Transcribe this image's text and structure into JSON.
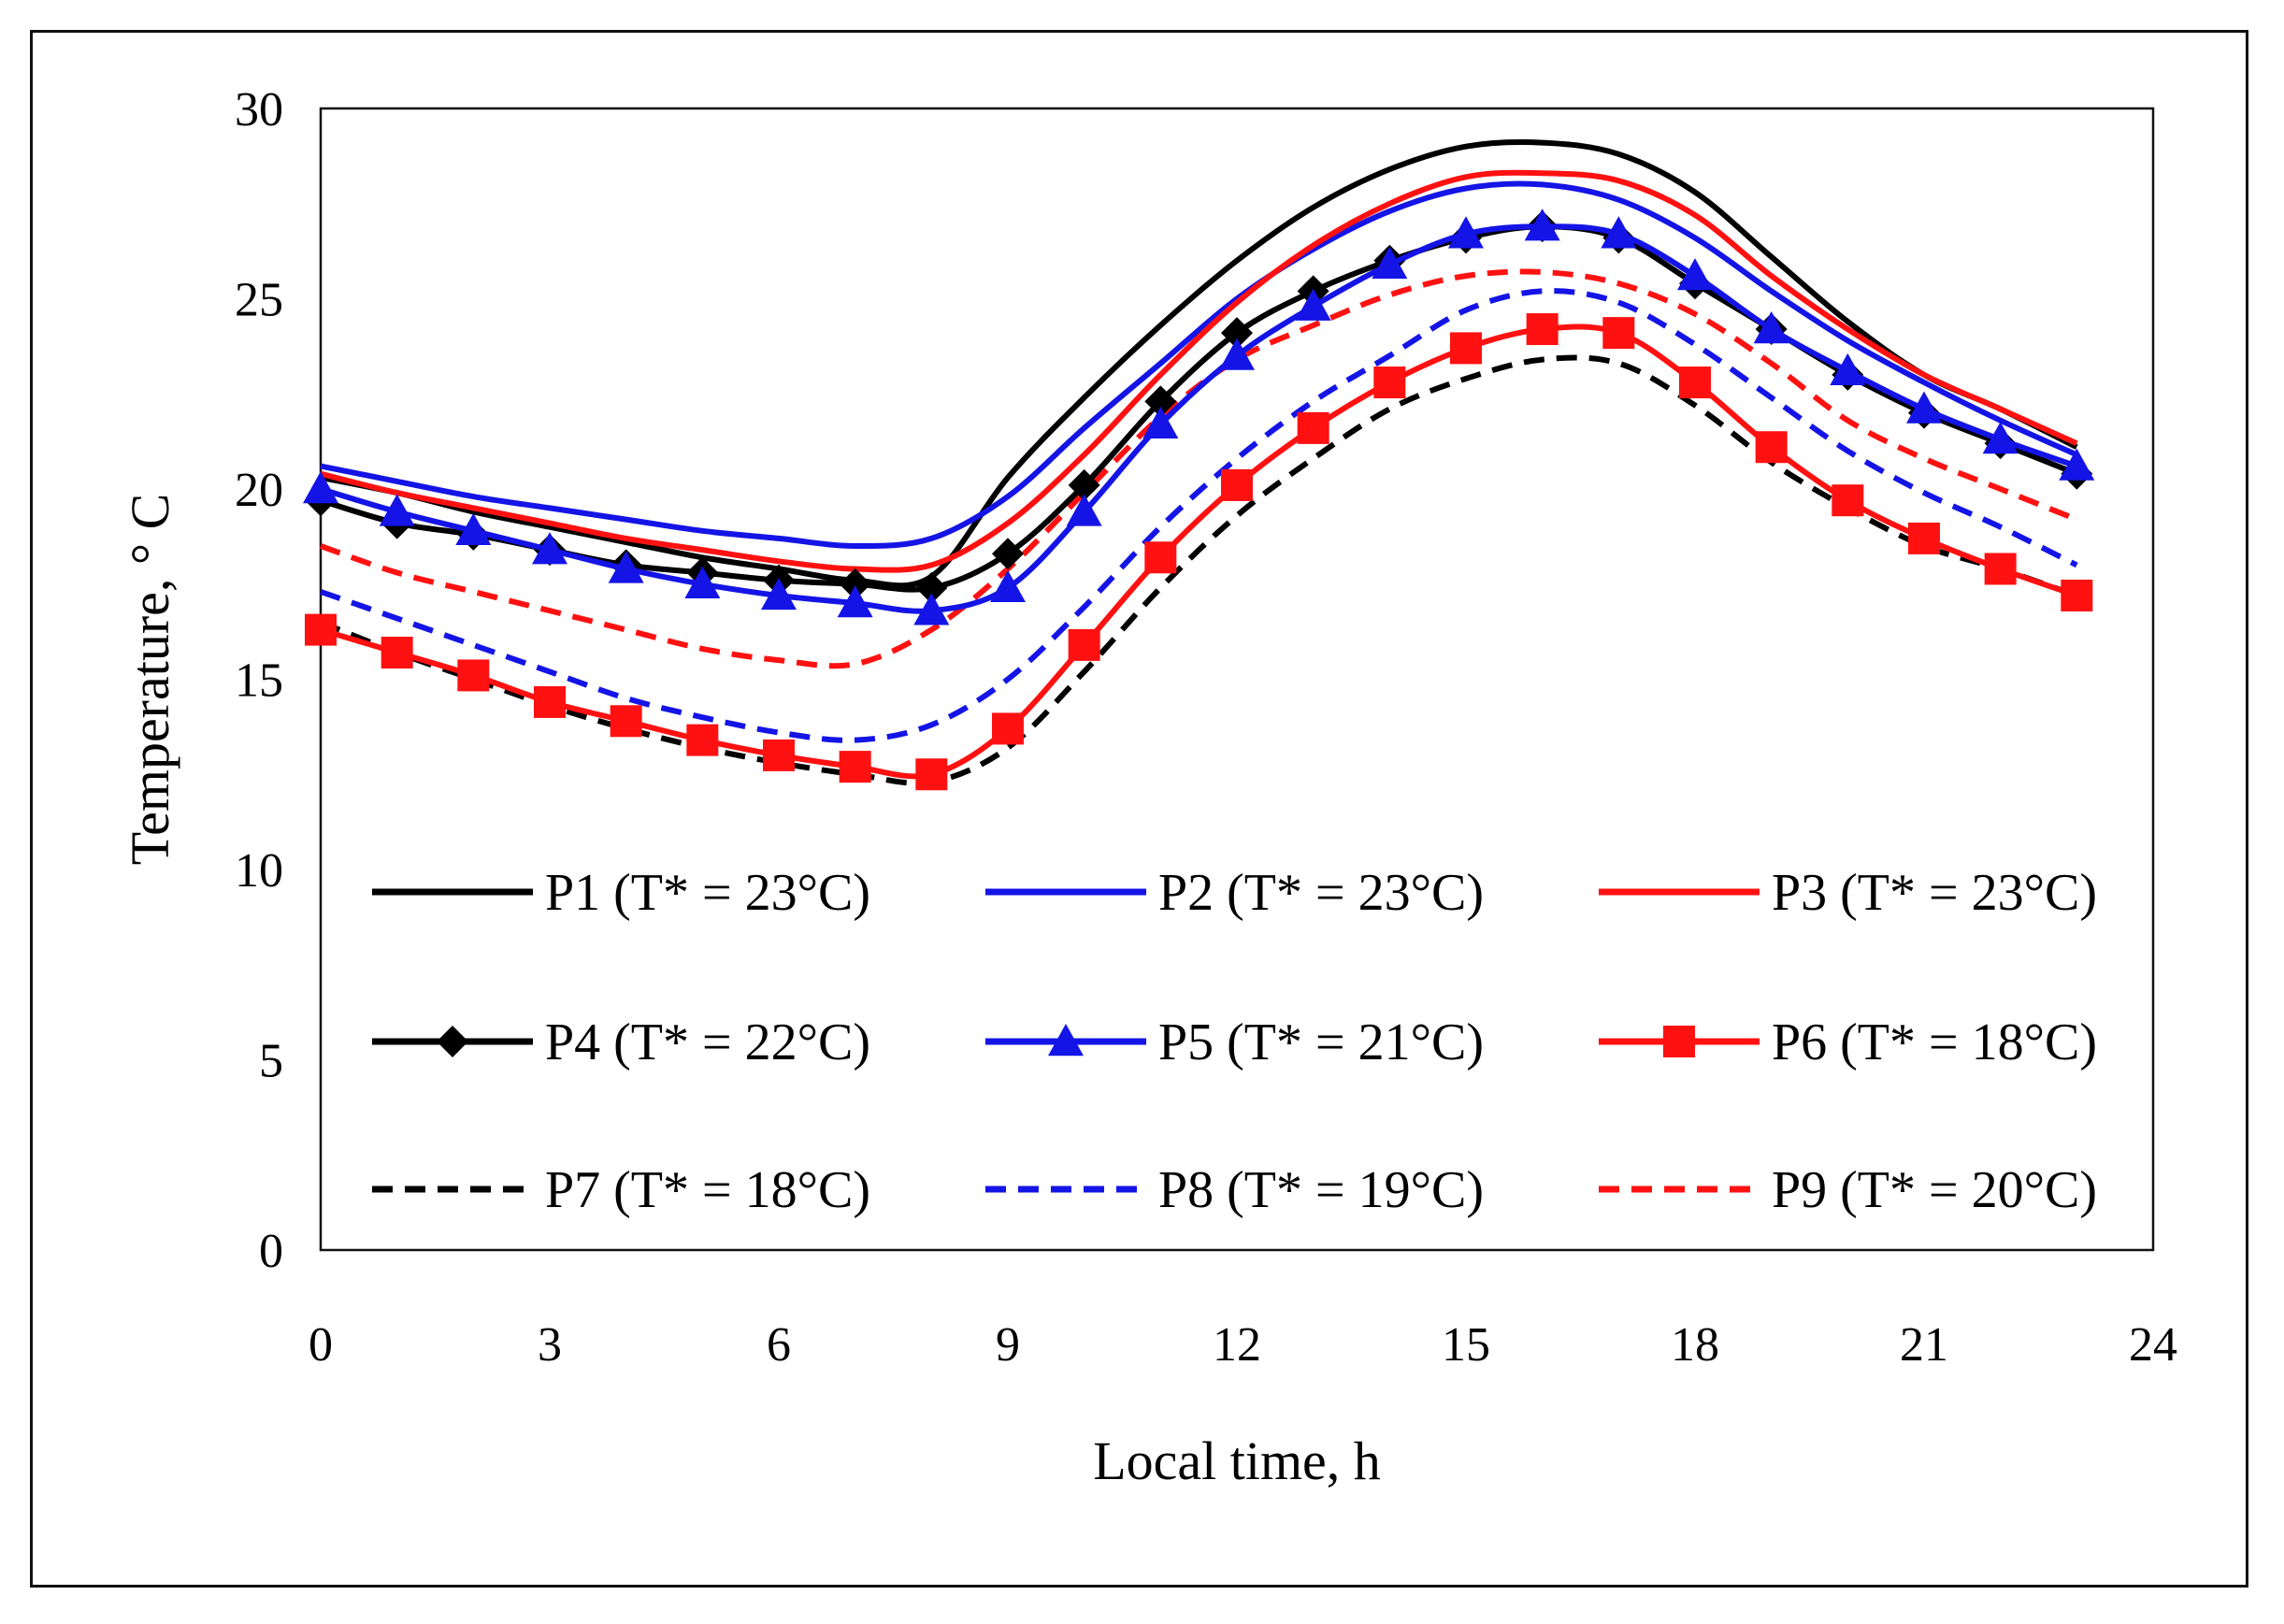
{
  "chart_data": {
    "type": "line",
    "title": "",
    "xlabel": "Local time, h",
    "ylabel": "Temperature, ° C",
    "xlim": [
      0,
      24
    ],
    "ylim": [
      0,
      30
    ],
    "xticks": [
      0,
      3,
      6,
      9,
      12,
      15,
      18,
      21,
      24
    ],
    "yticks": [
      0,
      5,
      10,
      15,
      20,
      25,
      30
    ],
    "grid": false,
    "legend_position": "bottom-inside",
    "x": [
      0,
      1,
      2,
      3,
      4,
      5,
      6,
      7,
      8,
      9,
      10,
      11,
      12,
      13,
      14,
      15,
      16,
      17,
      18,
      19,
      20,
      21,
      22,
      23
    ],
    "series": [
      {
        "name": "P1 (T* = 23°C)",
        "color": "#000000",
        "dash": "solid",
        "marker": "none",
        "values": [
          20.3,
          19.9,
          19.4,
          19.0,
          18.6,
          18.2,
          17.9,
          17.6,
          17.7,
          20.3,
          22.4,
          24.3,
          26.0,
          27.4,
          28.4,
          29.0,
          29.1,
          28.8,
          27.8,
          26.1,
          24.4,
          23.0,
          22.1,
          21.1
        ]
      },
      {
        "name": "P2 (T* = 23°C)",
        "color": "#1414e6",
        "dash": "solid",
        "marker": "none",
        "values": [
          20.6,
          20.2,
          19.8,
          19.5,
          19.2,
          18.9,
          18.7,
          18.5,
          18.7,
          19.8,
          21.6,
          23.3,
          25.0,
          26.3,
          27.3,
          27.9,
          28.0,
          27.6,
          26.6,
          25.2,
          23.9,
          22.8,
          21.8,
          20.9
        ]
      },
      {
        "name": "P3 (T* = 23°C)",
        "color": "#ff1111",
        "dash": "solid",
        "marker": "none",
        "values": [
          20.4,
          19.9,
          19.5,
          19.1,
          18.7,
          18.4,
          18.1,
          17.9,
          18.0,
          19.1,
          20.9,
          23.0,
          24.9,
          26.4,
          27.5,
          28.2,
          28.3,
          28.1,
          27.2,
          25.6,
          24.2,
          23.0,
          22.1,
          21.2
        ]
      },
      {
        "name": "P4 (T* = 22°C)",
        "color": "#000000",
        "dash": "solid",
        "marker": "diamond",
        "values": [
          19.7,
          19.1,
          18.8,
          18.4,
          18.0,
          17.8,
          17.6,
          17.5,
          17.4,
          18.3,
          20.1,
          22.3,
          24.1,
          25.2,
          26.0,
          26.6,
          26.9,
          26.6,
          25.4,
          24.2,
          23.0,
          22.0,
          21.2,
          20.4
        ]
      },
      {
        "name": "P5 (T* = 21°C)",
        "color": "#1414e6",
        "dash": "solid",
        "marker": "triangle",
        "values": [
          20.0,
          19.4,
          18.9,
          18.4,
          17.9,
          17.5,
          17.2,
          17.0,
          16.8,
          17.4,
          19.4,
          21.7,
          23.5,
          24.8,
          25.9,
          26.7,
          26.9,
          26.7,
          25.6,
          24.2,
          23.1,
          22.1,
          21.3,
          20.6
        ]
      },
      {
        "name": "P6 (T* = 18°C)",
        "color": "#ff1111",
        "dash": "solid",
        "marker": "square",
        "values": [
          16.3,
          15.7,
          15.1,
          14.4,
          13.9,
          13.4,
          13.0,
          12.7,
          12.5,
          13.7,
          15.9,
          18.2,
          20.1,
          21.6,
          22.8,
          23.7,
          24.2,
          24.1,
          22.8,
          21.1,
          19.7,
          18.7,
          17.9,
          17.2
        ]
      },
      {
        "name": "P7 (T* = 18°C)",
        "color": "#000000",
        "dash": "dashed",
        "marker": "none",
        "values": [
          16.5,
          15.7,
          15.0,
          14.3,
          13.7,
          13.2,
          12.8,
          12.5,
          12.3,
          13.2,
          15.2,
          17.4,
          19.3,
          20.8,
          22.1,
          22.9,
          23.4,
          23.3,
          22.2,
          20.7,
          19.5,
          18.5,
          17.9,
          17.2
        ]
      },
      {
        "name": "P8 (T* = 19°C)",
        "color": "#1414e6",
        "dash": "dashed",
        "marker": "none",
        "values": [
          17.3,
          16.6,
          15.9,
          15.2,
          14.5,
          14.0,
          13.6,
          13.4,
          13.8,
          15.0,
          16.9,
          19.0,
          20.8,
          22.3,
          23.5,
          24.7,
          25.2,
          24.9,
          23.8,
          22.4,
          21.0,
          19.9,
          19.0,
          18.0
        ]
      },
      {
        "name": "P9 (T* = 20°C)",
        "color": "#ff1111",
        "dash": "dashed",
        "marker": "none",
        "values": [
          18.5,
          17.8,
          17.3,
          16.8,
          16.3,
          15.8,
          15.5,
          15.4,
          16.3,
          17.9,
          19.9,
          21.9,
          23.4,
          24.3,
          25.1,
          25.6,
          25.7,
          25.4,
          24.6,
          23.3,
          21.8,
          20.8,
          20.0,
          19.2
        ]
      }
    ]
  }
}
